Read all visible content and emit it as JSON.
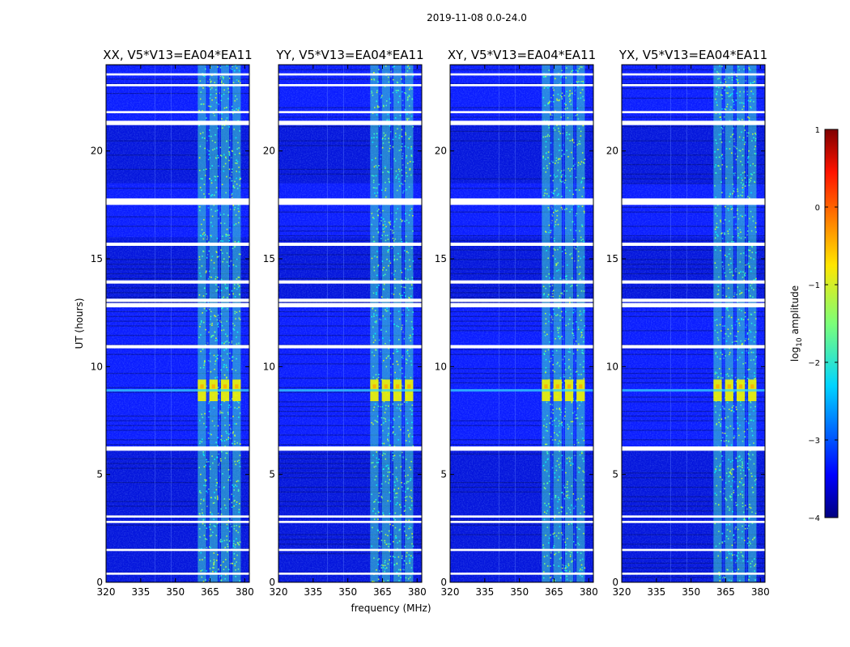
{
  "chart_data": {
    "type": "heatmap",
    "title": "2019-11-08 0.0-24.0",
    "xlabel": "frequency (MHz)",
    "ylabel": "UT (hours)",
    "xlim": [
      320,
      382
    ],
    "ylim": [
      0,
      24
    ],
    "xticks": [
      320,
      335,
      350,
      365,
      380
    ],
    "yticks": [
      0,
      5,
      10,
      15,
      20
    ],
    "colorbar": {
      "label_prefix": "log",
      "label_subscript": "10",
      "label_suffix": " amplitude",
      "range": [
        -4,
        1
      ],
      "ticks": [
        -4,
        -3,
        -2,
        -1,
        0,
        1
      ],
      "colormap": "jet"
    },
    "panels": [
      {
        "title": "XX, V5*V13=EA04*EA11"
      },
      {
        "title": "YY, V5*V13=EA04*EA11"
      },
      {
        "title": "XY, V5*V13=EA04*EA11"
      },
      {
        "title": "YX, V5*V13=EA04*EA11"
      }
    ],
    "rfi_band_mhz": [
      360,
      378
    ],
    "rfi_subband_centers_mhz": [
      361.5,
      366.5,
      371.5,
      376.5
    ],
    "peak_event_ut": [
      8.4,
      9.4
    ],
    "broadband_line_ut": 8.9,
    "flagged_ut_ranges": [
      [
        0.35,
        0.45
      ],
      [
        1.45,
        1.55
      ],
      [
        2.75,
        2.85
      ],
      [
        3.0,
        3.1
      ],
      [
        6.1,
        6.3
      ],
      [
        10.85,
        11.0
      ],
      [
        12.75,
        12.95
      ],
      [
        13.0,
        13.15
      ],
      [
        13.85,
        14.0
      ],
      [
        15.6,
        15.75
      ],
      [
        17.5,
        17.8
      ],
      [
        21.2,
        21.4
      ],
      [
        21.75,
        21.85
      ],
      [
        23.0,
        23.1
      ],
      [
        23.5,
        23.6
      ]
    ]
  }
}
